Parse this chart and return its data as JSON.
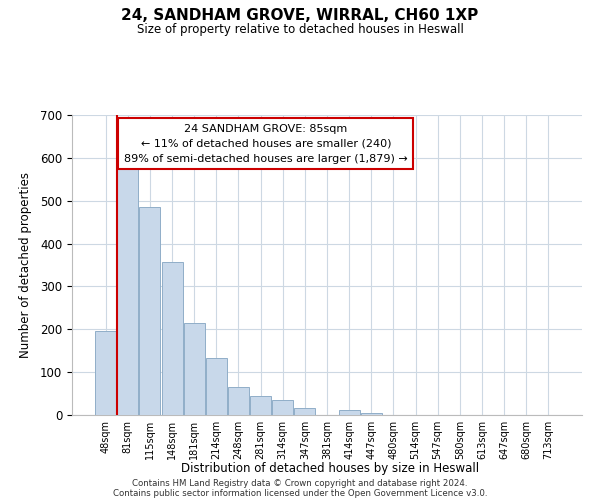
{
  "title": "24, SANDHAM GROVE, WIRRAL, CH60 1XP",
  "subtitle": "Size of property relative to detached houses in Heswall",
  "xlabel": "Distribution of detached houses by size in Heswall",
  "ylabel": "Number of detached properties",
  "bin_labels": [
    "48sqm",
    "81sqm",
    "115sqm",
    "148sqm",
    "181sqm",
    "214sqm",
    "248sqm",
    "281sqm",
    "314sqm",
    "347sqm",
    "381sqm",
    "414sqm",
    "447sqm",
    "480sqm",
    "514sqm",
    "547sqm",
    "580sqm",
    "613sqm",
    "647sqm",
    "680sqm",
    "713sqm"
  ],
  "bar_heights": [
    195,
    580,
    485,
    358,
    215,
    133,
    65,
    45,
    35,
    17,
    0,
    12,
    5,
    0,
    0,
    0,
    0,
    0,
    0,
    0,
    0
  ],
  "bar_color": "#c8d8ea",
  "bar_edge_color": "#90aec8",
  "marker_line_color": "#cc0000",
  "ylim": [
    0,
    700
  ],
  "yticks": [
    0,
    100,
    200,
    300,
    400,
    500,
    600,
    700
  ],
  "annotation_title": "24 SANDHAM GROVE: 85sqm",
  "annotation_line1": "← 11% of detached houses are smaller (240)",
  "annotation_line2": "89% of semi-detached houses are larger (1,879) →",
  "annotation_box_color": "#ffffff",
  "annotation_border_color": "#cc0000",
  "footer_line1": "Contains HM Land Registry data © Crown copyright and database right 2024.",
  "footer_line2": "Contains public sector information licensed under the Open Government Licence v3.0.",
  "background_color": "#ffffff",
  "grid_color": "#cdd8e3"
}
